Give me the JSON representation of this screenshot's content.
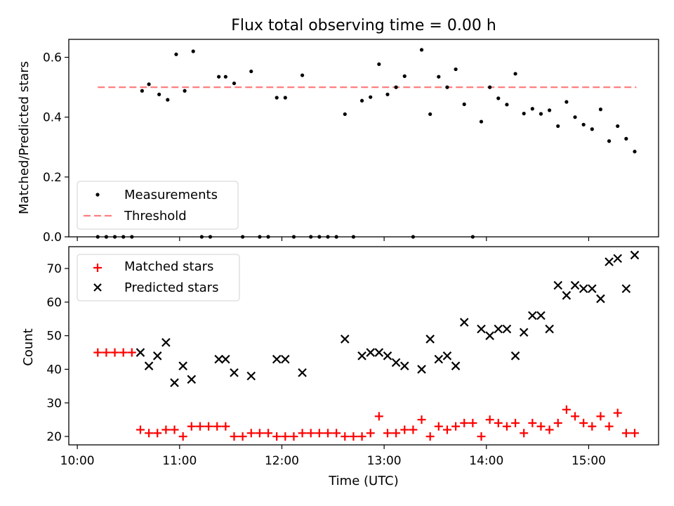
{
  "chart_data": [
    {
      "type": "scatter",
      "title": "Flux total observing time = 0.00 h",
      "xlabel": "",
      "ylabel": "Matched/Predicted stars",
      "xlim": [
        "09:55",
        "15:41"
      ],
      "ylim": [
        0,
        0.66
      ],
      "yticks": [
        0.0,
        0.2,
        0.4,
        0.6
      ],
      "ytick_labels": [
        "0.0",
        "0.2",
        "0.4",
        "0.6"
      ],
      "xticks": [
        "10:00",
        "11:00",
        "12:00",
        "13:00",
        "14:00",
        "15:00"
      ],
      "grid": false,
      "legend": {
        "placement": "lower-left",
        "entries": [
          "Measurements",
          "Threshold"
        ]
      },
      "threshold": {
        "name": "Threshold",
        "y": 0.5,
        "x_start": "10:12",
        "x_end": "15:28",
        "color": "#ff7f7f"
      },
      "series": [
        {
          "name": "Measurements",
          "color": "#000000",
          "marker": "dot",
          "points": [
            [
              "10:12",
              0
            ],
            [
              "10:17",
              0
            ],
            [
              "10:22",
              0
            ],
            [
              "10:27",
              0
            ],
            [
              "10:32",
              0
            ],
            [
              "10:38",
              0.488
            ],
            [
              "10:42",
              0.51
            ],
            [
              "10:48",
              0.476
            ],
            [
              "10:53",
              0.458
            ],
            [
              "10:58",
              0.61
            ],
            [
              "11:03",
              0.488
            ],
            [
              "11:08",
              0.62
            ],
            [
              "11:13",
              0
            ],
            [
              "11:18",
              0
            ],
            [
              "11:23",
              0.535
            ],
            [
              "11:27",
              0.535
            ],
            [
              "11:32",
              0.513
            ],
            [
              "11:37",
              0
            ],
            [
              "11:42",
              0.553
            ],
            [
              "11:47",
              0
            ],
            [
              "11:52",
              0
            ],
            [
              "11:57",
              0.465
            ],
            [
              "12:02",
              0.465
            ],
            [
              "12:07",
              0
            ],
            [
              "12:12",
              0.54
            ],
            [
              "12:17",
              0
            ],
            [
              "12:22",
              0
            ],
            [
              "12:27",
              0
            ],
            [
              "12:32",
              0
            ],
            [
              "12:37",
              0.41
            ],
            [
              "12:42",
              0
            ],
            [
              "12:47",
              0.455
            ],
            [
              "12:52",
              0.467
            ],
            [
              "12:57",
              0.577
            ],
            [
              "13:02",
              0.476
            ],
            [
              "13:07",
              0.5
            ],
            [
              "13:12",
              0.537
            ],
            [
              "13:17",
              0
            ],
            [
              "13:22",
              0.625
            ],
            [
              "13:27",
              0.41
            ],
            [
              "13:32",
              0.535
            ],
            [
              "13:37",
              0.5
            ],
            [
              "13:42",
              0.56
            ],
            [
              "13:47",
              0.443
            ],
            [
              "13:52",
              0
            ],
            [
              "13:57",
              0.385
            ],
            [
              "14:02",
              0.5
            ],
            [
              "14:07",
              0.463
            ],
            [
              "14:12",
              0.442
            ],
            [
              "14:17",
              0.545
            ],
            [
              "14:22",
              0.412
            ],
            [
              "14:27",
              0.428
            ],
            [
              "14:32",
              0.411
            ],
            [
              "14:37",
              0.423
            ],
            [
              "14:42",
              0.37
            ],
            [
              "14:47",
              0.451
            ],
            [
              "14:52",
              0.4
            ],
            [
              "14:57",
              0.375
            ],
            [
              "15:02",
              0.36
            ],
            [
              "15:07",
              0.426
            ],
            [
              "15:12",
              0.32
            ],
            [
              "15:17",
              0.37
            ],
            [
              "15:22",
              0.328
            ],
            [
              "15:27",
              0.285
            ]
          ]
        }
      ]
    },
    {
      "type": "scatter",
      "title": "",
      "xlabel": "Time (UTC)",
      "ylabel": "Count",
      "xlim": [
        "09:55",
        "15:41"
      ],
      "ylim": [
        17.5,
        76.5
      ],
      "yticks": [
        20,
        30,
        40,
        50,
        60,
        70
      ],
      "ytick_labels": [
        "20",
        "30",
        "40",
        "50",
        "60",
        "70"
      ],
      "xticks": [
        "10:00",
        "11:00",
        "12:00",
        "13:00",
        "14:00",
        "15:00"
      ],
      "xtick_labels": [
        "10:00",
        "11:00",
        "12:00",
        "13:00",
        "14:00",
        "15:00"
      ],
      "grid": false,
      "legend": {
        "placement": "top-left",
        "entries": [
          "Matched stars",
          "Predicted stars"
        ]
      },
      "series": [
        {
          "name": "Matched stars",
          "color": "#ff0000",
          "marker": "plus",
          "points": [
            [
              "10:12",
              45
            ],
            [
              "10:17",
              45
            ],
            [
              "10:22",
              45
            ],
            [
              "10:27",
              45
            ],
            [
              "10:32",
              45
            ],
            [
              "10:37",
              22
            ],
            [
              "10:42",
              21
            ],
            [
              "10:47",
              21
            ],
            [
              "10:52",
              22
            ],
            [
              "10:57",
              22
            ],
            [
              "11:02",
              20
            ],
            [
              "11:07",
              23
            ],
            [
              "11:12",
              23
            ],
            [
              "11:17",
              23
            ],
            [
              "11:22",
              23
            ],
            [
              "11:27",
              23
            ],
            [
              "11:32",
              20
            ],
            [
              "11:37",
              20
            ],
            [
              "11:42",
              21
            ],
            [
              "11:47",
              21
            ],
            [
              "11:52",
              21
            ],
            [
              "11:57",
              20
            ],
            [
              "12:02",
              20
            ],
            [
              "12:07",
              20
            ],
            [
              "12:12",
              21
            ],
            [
              "12:17",
              21
            ],
            [
              "12:22",
              21
            ],
            [
              "12:27",
              21
            ],
            [
              "12:32",
              21
            ],
            [
              "12:37",
              20
            ],
            [
              "12:42",
              20
            ],
            [
              "12:47",
              20
            ],
            [
              "12:52",
              21
            ],
            [
              "12:57",
              26
            ],
            [
              "13:02",
              21
            ],
            [
              "13:07",
              21
            ],
            [
              "13:12",
              22
            ],
            [
              "13:17",
              22
            ],
            [
              "13:22",
              25
            ],
            [
              "13:27",
              20
            ],
            [
              "13:32",
              23
            ],
            [
              "13:37",
              22
            ],
            [
              "13:42",
              23
            ],
            [
              "13:47",
              24
            ],
            [
              "13:52",
              24
            ],
            [
              "13:57",
              20
            ],
            [
              "14:02",
              25
            ],
            [
              "14:07",
              24
            ],
            [
              "14:12",
              23
            ],
            [
              "14:17",
              24
            ],
            [
              "14:22",
              21
            ],
            [
              "14:27",
              24
            ],
            [
              "14:32",
              23
            ],
            [
              "14:37",
              22
            ],
            [
              "14:42",
              24
            ],
            [
              "14:47",
              28
            ],
            [
              "14:52",
              26
            ],
            [
              "14:57",
              24
            ],
            [
              "15:02",
              23
            ],
            [
              "15:07",
              26
            ],
            [
              "15:12",
              23
            ],
            [
              "15:17",
              27
            ],
            [
              "15:22",
              21
            ],
            [
              "15:27",
              21
            ]
          ]
        },
        {
          "name": "Predicted stars",
          "color": "#000000",
          "marker": "x",
          "points": [
            [
              "10:37",
              45
            ],
            [
              "10:42",
              41
            ],
            [
              "10:47",
              44
            ],
            [
              "10:52",
              48
            ],
            [
              "10:57",
              36
            ],
            [
              "11:02",
              41
            ],
            [
              "11:07",
              37
            ],
            [
              "11:23",
              43
            ],
            [
              "11:27",
              43
            ],
            [
              "11:32",
              39
            ],
            [
              "11:42",
              38
            ],
            [
              "11:57",
              43
            ],
            [
              "12:02",
              43
            ],
            [
              "12:12",
              39
            ],
            [
              "12:37",
              49
            ],
            [
              "12:47",
              44
            ],
            [
              "12:52",
              45
            ],
            [
              "12:57",
              45
            ],
            [
              "13:02",
              44
            ],
            [
              "13:07",
              42
            ],
            [
              "13:12",
              41
            ],
            [
              "13:22",
              40
            ],
            [
              "13:27",
              49
            ],
            [
              "13:32",
              43
            ],
            [
              "13:37",
              44
            ],
            [
              "13:42",
              41
            ],
            [
              "13:47",
              54
            ],
            [
              "13:57",
              52
            ],
            [
              "14:02",
              50
            ],
            [
              "14:07",
              52
            ],
            [
              "14:12",
              52
            ],
            [
              "14:17",
              44
            ],
            [
              "14:22",
              51
            ],
            [
              "14:27",
              56
            ],
            [
              "14:32",
              56
            ],
            [
              "14:37",
              52
            ],
            [
              "14:42",
              65
            ],
            [
              "14:47",
              62
            ],
            [
              "14:52",
              65
            ],
            [
              "14:57",
              64
            ],
            [
              "15:02",
              64
            ],
            [
              "15:07",
              61
            ],
            [
              "15:12",
              72
            ],
            [
              "15:17",
              73
            ],
            [
              "15:22",
              64
            ],
            [
              "15:27",
              74
            ]
          ]
        }
      ]
    }
  ]
}
